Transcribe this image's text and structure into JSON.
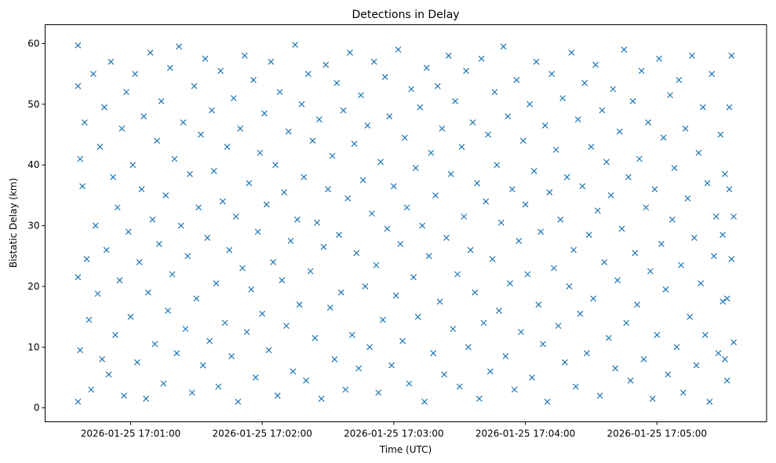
{
  "chart_data": {
    "type": "scatter",
    "title": "Detections in Delay",
    "xlabel": "Time (UTC)",
    "ylabel": "Bistatic Delay (km)",
    "x_units": "seconds after 2026-01-25 17:00:00 UTC",
    "xlim": [
      21,
      350
    ],
    "ylim": [
      -2.3,
      63.1
    ],
    "xticks": [
      {
        "value": 60,
        "label": "2026-01-25 17:01:00"
      },
      {
        "value": 120,
        "label": "2026-01-25 17:02:00"
      },
      {
        "value": 180,
        "label": "2026-01-25 17:03:00"
      },
      {
        "value": 240,
        "label": "2026-01-25 17:04:00"
      },
      {
        "value": 300,
        "label": "2026-01-25 17:05:00"
      }
    ],
    "yticks": [
      {
        "value": 0,
        "label": "0"
      },
      {
        "value": 10,
        "label": "10"
      },
      {
        "value": 20,
        "label": "20"
      },
      {
        "value": 30,
        "label": "30"
      },
      {
        "value": 40,
        "label": "40"
      },
      {
        "value": 50,
        "label": "50"
      },
      {
        "value": 60,
        "label": "60"
      }
    ],
    "marker": "x",
    "color": "#1f77b4",
    "grid": false,
    "points": [
      [
        36,
        59.7
      ],
      [
        36,
        53
      ],
      [
        37,
        41
      ],
      [
        36,
        21.5
      ],
      [
        37,
        9.5
      ],
      [
        36,
        1
      ],
      [
        38,
        36.5
      ],
      [
        39,
        47
      ],
      [
        40,
        24.5
      ],
      [
        41,
        14.5
      ],
      [
        42,
        3
      ],
      [
        43,
        55
      ],
      [
        44,
        30
      ],
      [
        45,
        18.8
      ],
      [
        46,
        43
      ],
      [
        47,
        8
      ],
      [
        48,
        49.5
      ],
      [
        49,
        26
      ],
      [
        50,
        5.5
      ],
      [
        51,
        57
      ],
      [
        52,
        38
      ],
      [
        53,
        12
      ],
      [
        54,
        33
      ],
      [
        55,
        21
      ],
      [
        56,
        46
      ],
      [
        57,
        2
      ],
      [
        58,
        52
      ],
      [
        59,
        29
      ],
      [
        60,
        15
      ],
      [
        61,
        40
      ],
      [
        62,
        55
      ],
      [
        63,
        7.5
      ],
      [
        64,
        24
      ],
      [
        65,
        36
      ],
      [
        66,
        48
      ],
      [
        67,
        1.5
      ],
      [
        68,
        19
      ],
      [
        69,
        58.5
      ],
      [
        70,
        31
      ],
      [
        71,
        10.5
      ],
      [
        72,
        44
      ],
      [
        73,
        27
      ],
      [
        74,
        50.5
      ],
      [
        75,
        4
      ],
      [
        76,
        35
      ],
      [
        77,
        16
      ],
      [
        78,
        56
      ],
      [
        79,
        22
      ],
      [
        80,
        41
      ],
      [
        81,
        9
      ],
      [
        82,
        59.5
      ],
      [
        83,
        30
      ],
      [
        84,
        47
      ],
      [
        85,
        13
      ],
      [
        86,
        25
      ],
      [
        87,
        38.5
      ],
      [
        88,
        2.5
      ],
      [
        89,
        53
      ],
      [
        90,
        18
      ],
      [
        91,
        33
      ],
      [
        92,
        45
      ],
      [
        93,
        7
      ],
      [
        94,
        57.5
      ],
      [
        95,
        28
      ],
      [
        96,
        11
      ],
      [
        97,
        49
      ],
      [
        98,
        39
      ],
      [
        99,
        20.5
      ],
      [
        100,
        3.5
      ],
      [
        101,
        55.5
      ],
      [
        102,
        34
      ],
      [
        103,
        14
      ],
      [
        104,
        43
      ],
      [
        105,
        26
      ],
      [
        106,
        8.5
      ],
      [
        107,
        51
      ],
      [
        108,
        31.5
      ],
      [
        109,
        1
      ],
      [
        110,
        46
      ],
      [
        111,
        23
      ],
      [
        112,
        58
      ],
      [
        113,
        12.5
      ],
      [
        114,
        37
      ],
      [
        115,
        19.5
      ],
      [
        116,
        54
      ],
      [
        117,
        5
      ],
      [
        118,
        29
      ],
      [
        119,
        42
      ],
      [
        120,
        15.5
      ],
      [
        121,
        48.5
      ],
      [
        122,
        33.5
      ],
      [
        123,
        9.5
      ],
      [
        124,
        57
      ],
      [
        125,
        24
      ],
      [
        126,
        40
      ],
      [
        127,
        2
      ],
      [
        128,
        52
      ],
      [
        129,
        21
      ],
      [
        130,
        35.5
      ],
      [
        131,
        13.5
      ],
      [
        132,
        45.5
      ],
      [
        133,
        27.5
      ],
      [
        134,
        6
      ],
      [
        135,
        59.8
      ],
      [
        136,
        31
      ],
      [
        137,
        17
      ],
      [
        138,
        50
      ],
      [
        139,
        38
      ],
      [
        140,
        4.5
      ],
      [
        141,
        55
      ],
      [
        142,
        22.5
      ],
      [
        143,
        44
      ],
      [
        144,
        11.5
      ],
      [
        145,
        30.5
      ],
      [
        146,
        47.5
      ],
      [
        147,
        1.5
      ],
      [
        148,
        26.5
      ],
      [
        149,
        56.5
      ],
      [
        150,
        36
      ],
      [
        151,
        16.5
      ],
      [
        152,
        41.5
      ],
      [
        153,
        8
      ],
      [
        154,
        53.5
      ],
      [
        155,
        28.5
      ],
      [
        156,
        19
      ],
      [
        157,
        49
      ],
      [
        158,
        3
      ],
      [
        159,
        34.5
      ],
      [
        160,
        58.5
      ],
      [
        161,
        12
      ],
      [
        162,
        43.5
      ],
      [
        163,
        25.5
      ],
      [
        164,
        6.5
      ],
      [
        165,
        51.5
      ],
      [
        166,
        37.5
      ],
      [
        167,
        20
      ],
      [
        168,
        46.5
      ],
      [
        169,
        10
      ],
      [
        170,
        32
      ],
      [
        171,
        57
      ],
      [
        172,
        23.5
      ],
      [
        173,
        2.5
      ],
      [
        174,
        40.5
      ],
      [
        175,
        14.5
      ],
      [
        176,
        54.5
      ],
      [
        177,
        29.5
      ],
      [
        178,
        48
      ],
      [
        179,
        7
      ],
      [
        180,
        36.5
      ],
      [
        181,
        18.5
      ],
      [
        182,
        59
      ],
      [
        183,
        27
      ],
      [
        184,
        11
      ],
      [
        185,
        44.5
      ],
      [
        186,
        33
      ],
      [
        187,
        4
      ],
      [
        188,
        52.5
      ],
      [
        189,
        21.5
      ],
      [
        190,
        39.5
      ],
      [
        191,
        15
      ],
      [
        192,
        49.5
      ],
      [
        193,
        30
      ],
      [
        194,
        1
      ],
      [
        195,
        56
      ],
      [
        196,
        25
      ],
      [
        197,
        42
      ],
      [
        198,
        9
      ],
      [
        199,
        35
      ],
      [
        200,
        53
      ],
      [
        201,
        17.5
      ],
      [
        202,
        46
      ],
      [
        203,
        5.5
      ],
      [
        204,
        28
      ],
      [
        205,
        58
      ],
      [
        206,
        38.5
      ],
      [
        207,
        13
      ],
      [
        208,
        50.5
      ],
      [
        209,
        22
      ],
      [
        210,
        3.5
      ],
      [
        211,
        43
      ],
      [
        212,
        31.5
      ],
      [
        213,
        55.5
      ],
      [
        214,
        10
      ],
      [
        215,
        26
      ],
      [
        216,
        47
      ],
      [
        217,
        19
      ],
      [
        218,
        37
      ],
      [
        219,
        1.5
      ],
      [
        220,
        57.5
      ],
      [
        221,
        14
      ],
      [
        222,
        34
      ],
      [
        223,
        45
      ],
      [
        224,
        6
      ],
      [
        225,
        24.5
      ],
      [
        226,
        52
      ],
      [
        227,
        40
      ],
      [
        228,
        16
      ],
      [
        229,
        30.5
      ],
      [
        230,
        59.5
      ],
      [
        231,
        8.5
      ],
      [
        232,
        48
      ],
      [
        233,
        20.5
      ],
      [
        234,
        36
      ],
      [
        235,
        3
      ],
      [
        236,
        54
      ],
      [
        237,
        27.5
      ],
      [
        238,
        12.5
      ],
      [
        239,
        44
      ],
      [
        240,
        33.5
      ],
      [
        241,
        22
      ],
      [
        242,
        50
      ],
      [
        243,
        5
      ],
      [
        244,
        39
      ],
      [
        245,
        57
      ],
      [
        246,
        17
      ],
      [
        247,
        29
      ],
      [
        248,
        10.5
      ],
      [
        249,
        46.5
      ],
      [
        250,
        1
      ],
      [
        251,
        35.5
      ],
      [
        252,
        55
      ],
      [
        253,
        23
      ],
      [
        254,
        42.5
      ],
      [
        255,
        13.5
      ],
      [
        256,
        31
      ],
      [
        257,
        51
      ],
      [
        258,
        7.5
      ],
      [
        259,
        38
      ],
      [
        260,
        20
      ],
      [
        261,
        58.5
      ],
      [
        262,
        26
      ],
      [
        263,
        3.5
      ],
      [
        264,
        47.5
      ],
      [
        265,
        15.5
      ],
      [
        266,
        36.5
      ],
      [
        267,
        53.5
      ],
      [
        268,
        9
      ],
      [
        269,
        28.5
      ],
      [
        270,
        43
      ],
      [
        271,
        18
      ],
      [
        272,
        56.5
      ],
      [
        273,
        32.5
      ],
      [
        274,
        2
      ],
      [
        275,
        49
      ],
      [
        276,
        24
      ],
      [
        277,
        40.5
      ],
      [
        278,
        11.5
      ],
      [
        279,
        35
      ],
      [
        280,
        52.5
      ],
      [
        281,
        6.5
      ],
      [
        282,
        21
      ],
      [
        283,
        45.5
      ],
      [
        284,
        29.5
      ],
      [
        285,
        59
      ],
      [
        286,
        14
      ],
      [
        287,
        38
      ],
      [
        288,
        4.5
      ],
      [
        289,
        50.5
      ],
      [
        290,
        25.5
      ],
      [
        291,
        17
      ],
      [
        292,
        41
      ],
      [
        293,
        55.5
      ],
      [
        294,
        8
      ],
      [
        295,
        33
      ],
      [
        296,
        47
      ],
      [
        297,
        22.5
      ],
      [
        298,
        1.5
      ],
      [
        299,
        36
      ],
      [
        300,
        12
      ],
      [
        301,
        57.5
      ],
      [
        302,
        27
      ],
      [
        303,
        44.5
      ],
      [
        304,
        19.5
      ],
      [
        305,
        5.5
      ],
      [
        306,
        51.5
      ],
      [
        307,
        31
      ],
      [
        308,
        39.5
      ],
      [
        309,
        10
      ],
      [
        310,
        54
      ],
      [
        311,
        23.5
      ],
      [
        312,
        2.5
      ],
      [
        313,
        46
      ],
      [
        314,
        34.5
      ],
      [
        315,
        15
      ],
      [
        316,
        58
      ],
      [
        317,
        28
      ],
      [
        318,
        7
      ],
      [
        319,
        42
      ],
      [
        320,
        20.5
      ],
      [
        321,
        49.5
      ],
      [
        322,
        12
      ],
      [
        323,
        37
      ],
      [
        324,
        1
      ],
      [
        325,
        55
      ],
      [
        326,
        25
      ],
      [
        327,
        31.5
      ],
      [
        328,
        9
      ],
      [
        329,
        45
      ],
      [
        330,
        17.5
      ],
      [
        331,
        38.5
      ],
      [
        332,
        4.5
      ],
      [
        333,
        49.5
      ],
      [
        334,
        24.5
      ],
      [
        335,
        31.5
      ],
      [
        335,
        10.8
      ],
      [
        334,
        58
      ],
      [
        333,
        36
      ],
      [
        332,
        18
      ],
      [
        331,
        8
      ],
      [
        330,
        28.5
      ]
    ]
  }
}
